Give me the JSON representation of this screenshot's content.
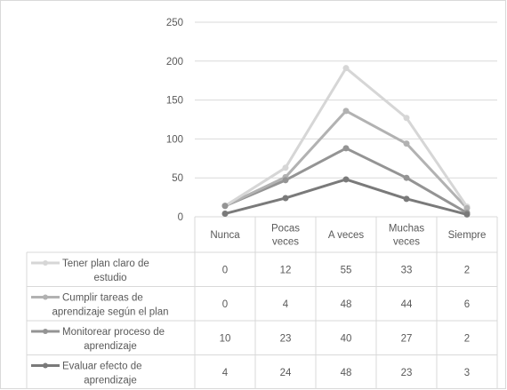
{
  "chart_data": {
    "type": "line",
    "categories": [
      "Nunca",
      "Pocas veces",
      "A veces",
      "Muchas veces",
      "Siempre"
    ],
    "category_lines": [
      [
        "Nunca"
      ],
      [
        "Pocas",
        "veces"
      ],
      [
        "A veces"
      ],
      [
        "Muchas",
        "veces"
      ],
      [
        "Siempre"
      ]
    ],
    "yticks": [
      0,
      50,
      100,
      150,
      200,
      250
    ],
    "ylim": [
      0,
      250
    ],
    "stacked": true,
    "grid": true,
    "legend": "data table below plot",
    "series": [
      {
        "name": "Tener plan claro de estudio",
        "name_lines": [
          "Tener plan claro de",
          "estudio"
        ],
        "values": [
          0,
          12,
          55,
          33,
          2
        ],
        "color": "#d6d6d6"
      },
      {
        "name": "Cumplir tareas de aprendizaje según el plan",
        "name_lines": [
          "Cumplir tareas de",
          "aprendizaje según el plan"
        ],
        "values": [
          0,
          4,
          48,
          44,
          6
        ],
        "color": "#b2b2b2"
      },
      {
        "name": "Monitorear proceso de aprendizaje",
        "name_lines": [
          "Monitorear proceso de",
          "aprendizaje"
        ],
        "values": [
          10,
          23,
          40,
          27,
          2
        ],
        "color": "#949494"
      },
      {
        "name": "Evaluar efecto de aprendizaje",
        "name_lines": [
          "Evaluar efecto de",
          "aprendizaje"
        ],
        "values": [
          4,
          24,
          48,
          23,
          3
        ],
        "color": "#7a7a7a"
      }
    ]
  }
}
